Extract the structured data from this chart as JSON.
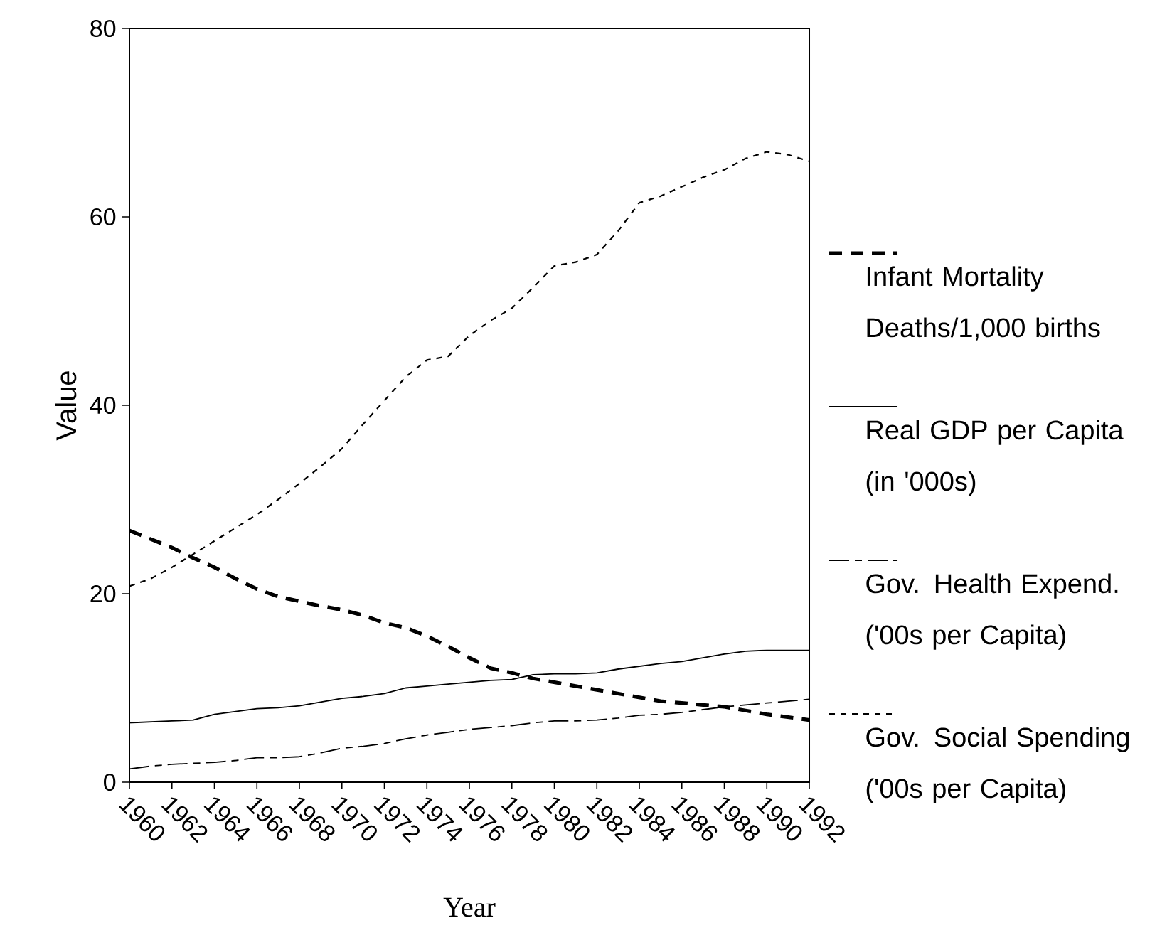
{
  "chart_data": {
    "type": "line",
    "xlabel": "Year",
    "ylabel": "Value",
    "x": [
      1960,
      1961,
      1962,
      1963,
      1964,
      1965,
      1966,
      1967,
      1968,
      1969,
      1970,
      1971,
      1972,
      1973,
      1974,
      1975,
      1976,
      1977,
      1978,
      1979,
      1980,
      1981,
      1982,
      1983,
      1984,
      1985,
      1986,
      1987,
      1988,
      1989,
      1990,
      1991,
      1992
    ],
    "xlim": [
      1960,
      1992
    ],
    "xticks": [
      1960,
      1962,
      1964,
      1966,
      1968,
      1970,
      1972,
      1974,
      1976,
      1978,
      1980,
      1982,
      1984,
      1986,
      1988,
      1990,
      1992
    ],
    "ylim": [
      0,
      80
    ],
    "yticks": [
      0,
      20,
      40,
      60,
      80
    ],
    "grid": false,
    "legend": "right",
    "series": [
      {
        "name": "Infant Mortality Deaths/1,000 births",
        "color": "#000000",
        "line_style": "dashed",
        "values": [
          26.7,
          25.8,
          24.9,
          23.8,
          22.8,
          21.6,
          20.5,
          19.7,
          19.2,
          18.7,
          18.3,
          17.7,
          16.9,
          16.4,
          15.5,
          14.4,
          13.2,
          12.1,
          11.6,
          11.0,
          10.6,
          10.2,
          9.8,
          9.4,
          9.0,
          8.6,
          8.4,
          8.2,
          8.0,
          7.6,
          7.2,
          6.9,
          6.6
        ]
      },
      {
        "name": "Real GDP per Capita (in '000s)",
        "color": "#000000",
        "line_style": "solid",
        "values": [
          6.3,
          6.4,
          6.5,
          6.6,
          7.2,
          7.5,
          7.8,
          7.9,
          8.1,
          8.5,
          8.9,
          9.1,
          9.4,
          10.0,
          10.2,
          10.4,
          10.6,
          10.8,
          10.9,
          11.4,
          11.5,
          11.5,
          11.6,
          12.0,
          12.3,
          12.6,
          12.8,
          13.2,
          13.6,
          13.9,
          14.0,
          14.0,
          14.0
        ]
      },
      {
        "name": "Gov. Health Expend. ('00s per Capita)",
        "color": "#000000",
        "line_style": "dashdot",
        "values": [
          1.4,
          1.7,
          1.9,
          2.0,
          2.1,
          2.3,
          2.6,
          2.6,
          2.7,
          3.1,
          3.6,
          3.8,
          4.1,
          4.6,
          5.0,
          5.3,
          5.6,
          5.8,
          6.0,
          6.3,
          6.5,
          6.5,
          6.6,
          6.8,
          7.1,
          7.2,
          7.4,
          7.7,
          8.0,
          8.2,
          8.4,
          8.6,
          8.8
        ]
      },
      {
        "name": "Gov. Social Spending ('00s per Capita)",
        "color": "#000000",
        "line_style": "dotted",
        "values": [
          20.8,
          21.6,
          22.8,
          24.2,
          25.6,
          27.0,
          28.4,
          30.0,
          31.7,
          33.5,
          35.4,
          38.0,
          40.5,
          43.0,
          44.8,
          45.2,
          47.4,
          49.0,
          50.3,
          52.5,
          54.8,
          55.2,
          56.0,
          58.5,
          61.5,
          62.2,
          63.2,
          64.2,
          65.0,
          66.2,
          66.9,
          66.6,
          65.9
        ]
      }
    ]
  }
}
